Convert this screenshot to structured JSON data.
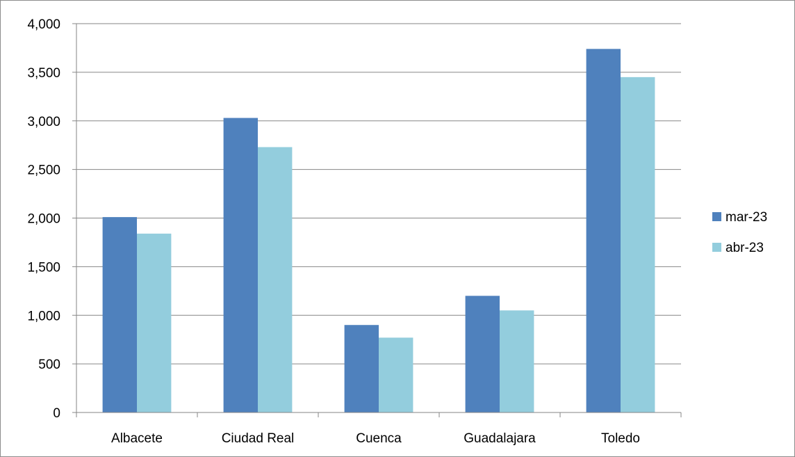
{
  "chart_data": {
    "type": "bar",
    "title": "",
    "xlabel": "",
    "ylabel": "",
    "categories": [
      "Albacete",
      "Ciudad Real",
      "Cuenca",
      "Guadalajara",
      "Toledo"
    ],
    "series": [
      {
        "name": "mar-23",
        "color": "#4f81bd",
        "values": [
          2010,
          3030,
          900,
          1200,
          3740
        ]
      },
      {
        "name": "abr-23",
        "color": "#93cddd",
        "values": [
          1840,
          2730,
          770,
          1050,
          3450
        ]
      }
    ],
    "ylim": [
      0,
      4000
    ],
    "yticks": [
      0,
      500,
      1000,
      1500,
      2000,
      2500,
      3000,
      3500,
      4000
    ],
    "ytick_labels": [
      "0",
      "500",
      "1,000",
      "1,500",
      "2,000",
      "2,500",
      "3,000",
      "3,500",
      "4,000"
    ],
    "grid": true,
    "gridline_color": "#868686",
    "legend_position": "right"
  }
}
